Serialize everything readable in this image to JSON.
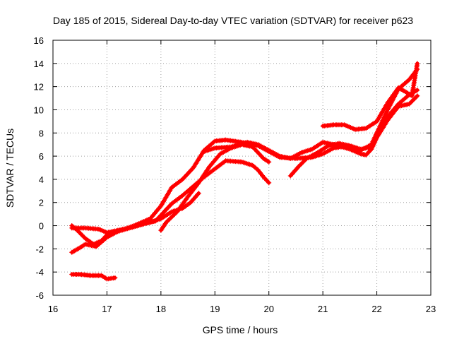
{
  "chart_data": {
    "type": "scatter",
    "title": "Day 185 of 2015, Sidereal Day-to-day VTEC variation (SDTVAR) for receiver p623",
    "xlabel": "GPS time / hours",
    "ylabel": "SDTVAR / TECUs",
    "xlim": [
      16,
      23
    ],
    "ylim": [
      -6,
      16
    ],
    "x_ticks": [
      "16",
      "17",
      "18",
      "19",
      "20",
      "21",
      "22",
      "23"
    ],
    "y_ticks": [
      "-6",
      "-4",
      "-2",
      "0",
      "2",
      "4",
      "6",
      "8",
      "10",
      "12",
      "14",
      "16"
    ],
    "grid": true,
    "marker": "plus",
    "color": "#ff0000",
    "series": [
      {
        "points": [
          [
            16.35,
            -4.2
          ],
          [
            16.5,
            -4.2
          ],
          [
            16.7,
            -4.3
          ],
          [
            16.9,
            -4.3
          ],
          [
            17.0,
            -4.6
          ],
          [
            17.15,
            -4.5
          ]
        ]
      },
      {
        "points": [
          [
            16.35,
            0.0
          ],
          [
            16.45,
            -0.4
          ],
          [
            16.6,
            -1.1
          ],
          [
            16.75,
            -1.6
          ],
          [
            16.9,
            -1.3
          ],
          [
            17.0,
            -0.8
          ],
          [
            17.2,
            -0.5
          ],
          [
            17.5,
            -0.1
          ],
          [
            17.8,
            0.3
          ],
          [
            18.0,
            0.6
          ],
          [
            18.2,
            1.2
          ],
          [
            18.4,
            1.5
          ],
          [
            18.55,
            2.0
          ],
          [
            18.7,
            2.8
          ]
        ]
      },
      {
        "points": [
          [
            16.35,
            -0.2
          ],
          [
            16.6,
            -0.2
          ],
          [
            16.85,
            -0.3
          ],
          [
            17.0,
            -0.6
          ],
          [
            17.2,
            -0.4
          ],
          [
            17.5,
            -0.1
          ],
          [
            17.7,
            0.2
          ],
          [
            17.9,
            0.4
          ],
          [
            18.0,
            0.9
          ],
          [
            18.2,
            1.9
          ],
          [
            18.4,
            2.6
          ],
          [
            18.6,
            3.4
          ],
          [
            18.8,
            4.2
          ],
          [
            19.0,
            4.9
          ],
          [
            19.2,
            5.6
          ],
          [
            19.5,
            5.5
          ],
          [
            19.7,
            5.2
          ],
          [
            19.8,
            4.8
          ],
          [
            19.9,
            4.2
          ],
          [
            20.0,
            3.7
          ]
        ]
      },
      {
        "points": [
          [
            16.35,
            -2.3
          ],
          [
            16.5,
            -1.9
          ],
          [
            16.6,
            -1.6
          ],
          [
            16.8,
            -1.8
          ],
          [
            17.0,
            -1.0
          ],
          [
            17.2,
            -0.5
          ],
          [
            17.5,
            0.0
          ],
          [
            17.8,
            0.6
          ],
          [
            18.0,
            1.7
          ],
          [
            18.2,
            3.3
          ],
          [
            18.4,
            4.0
          ],
          [
            18.6,
            5.0
          ],
          [
            18.8,
            6.5
          ],
          [
            19.0,
            7.3
          ],
          [
            19.2,
            7.4
          ],
          [
            19.5,
            7.2
          ],
          [
            19.8,
            6.9
          ],
          [
            20.0,
            6.4
          ],
          [
            20.2,
            5.9
          ],
          [
            20.5,
            5.8
          ],
          [
            20.8,
            5.9
          ],
          [
            21.0,
            6.2
          ],
          [
            21.2,
            6.7
          ],
          [
            21.5,
            6.9
          ],
          [
            21.7,
            6.6
          ],
          [
            21.9,
            6.8
          ],
          [
            22.0,
            8.0
          ],
          [
            22.2,
            9.4
          ],
          [
            22.4,
            10.5
          ],
          [
            22.6,
            11.3
          ],
          [
            22.75,
            11.7
          ]
        ]
      },
      {
        "points": [
          [
            18.0,
            -0.4
          ],
          [
            18.1,
            0.3
          ],
          [
            18.3,
            1.2
          ],
          [
            18.5,
            2.5
          ],
          [
            18.7,
            3.7
          ],
          [
            18.9,
            5.1
          ],
          [
            19.1,
            6.2
          ],
          [
            19.3,
            6.7
          ],
          [
            19.5,
            7.0
          ],
          [
            19.7,
            6.8
          ],
          [
            19.8,
            6.3
          ],
          [
            19.9,
            5.8
          ],
          [
            20.0,
            5.5
          ]
        ]
      },
      {
        "points": [
          [
            18.8,
            6.4
          ],
          [
            19.0,
            6.7
          ],
          [
            19.3,
            6.8
          ],
          [
            19.6,
            7.2
          ],
          [
            19.8,
            7.0
          ],
          [
            20.0,
            6.5
          ],
          [
            20.2,
            6.0
          ],
          [
            20.4,
            5.8
          ],
          [
            20.6,
            6.3
          ],
          [
            20.8,
            6.6
          ],
          [
            21.0,
            7.2
          ],
          [
            21.2,
            7.0
          ],
          [
            21.5,
            6.6
          ],
          [
            21.7,
            6.2
          ],
          [
            21.8,
            6.1
          ],
          [
            21.9,
            6.6
          ],
          [
            22.0,
            7.6
          ],
          [
            22.2,
            9.1
          ],
          [
            22.4,
            10.3
          ],
          [
            22.6,
            10.5
          ],
          [
            22.75,
            11.2
          ]
        ]
      },
      {
        "points": [
          [
            20.4,
            4.3
          ],
          [
            20.55,
            5.1
          ],
          [
            20.7,
            5.8
          ],
          [
            20.9,
            6.3
          ],
          [
            21.1,
            6.9
          ],
          [
            21.3,
            7.1
          ],
          [
            21.5,
            6.9
          ],
          [
            21.7,
            6.5
          ],
          [
            21.9,
            7.0
          ],
          [
            22.0,
            8.0
          ],
          [
            22.2,
            10.0
          ],
          [
            22.4,
            11.8
          ],
          [
            22.6,
            12.6
          ],
          [
            22.75,
            13.5
          ]
        ]
      },
      {
        "points": [
          [
            21.0,
            8.6
          ],
          [
            21.2,
            8.7
          ],
          [
            21.4,
            8.7
          ],
          [
            21.6,
            8.3
          ],
          [
            21.8,
            8.4
          ],
          [
            22.0,
            9.0
          ],
          [
            22.2,
            10.6
          ],
          [
            22.4,
            11.9
          ],
          [
            22.55,
            11.5
          ],
          [
            22.65,
            11.2
          ],
          [
            22.75,
            14.0
          ]
        ]
      }
    ]
  }
}
